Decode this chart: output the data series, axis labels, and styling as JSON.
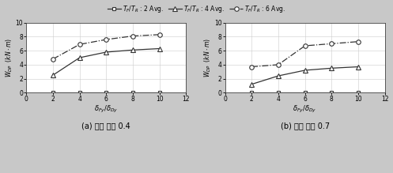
{
  "x": [
    2,
    4,
    6,
    8,
    10
  ],
  "panel_a": {
    "series2": [
      0.0,
      0.0,
      0.0,
      0.0,
      0.0
    ],
    "series4": [
      2.5,
      5.0,
      5.8,
      6.1,
      6.3
    ],
    "series6": [
      4.8,
      6.9,
      7.6,
      8.1,
      8.3
    ]
  },
  "panel_b": {
    "series2": [
      0.0,
      0.0,
      0.0,
      0.0,
      0.0
    ],
    "series4": [
      1.2,
      2.4,
      3.2,
      3.5,
      3.7
    ],
    "series6": [
      3.7,
      4.0,
      6.7,
      7.0,
      7.3
    ]
  },
  "xlim": [
    0,
    12
  ],
  "ylim": [
    0,
    10
  ],
  "xticks": [
    0,
    2,
    4,
    6,
    8,
    10,
    12
  ],
  "yticks": [
    0,
    2,
    4,
    6,
    8,
    10
  ],
  "xlabel": "$\\delta_{Fy}/\\delta_{Dy}$",
  "ylabel": "$W_{DP}$  $(kN \\cdot m)$",
  "label_a": "(a) 내력 비율 0.4",
  "label_b": "(b) 내력 비율 0.7",
  "legend_labels": [
    "$T_F/T_R$ : 2 Avg.",
    "$T_F/T_R$ : 4 Avg.",
    "$T_F/T_R$ : 6 Avg."
  ],
  "fig_facecolor": "#c8c8c8",
  "ax_facecolor": "#ffffff",
  "grid_color": "#cccccc",
  "line_color": "#333333",
  "marker_edge": "#333333"
}
